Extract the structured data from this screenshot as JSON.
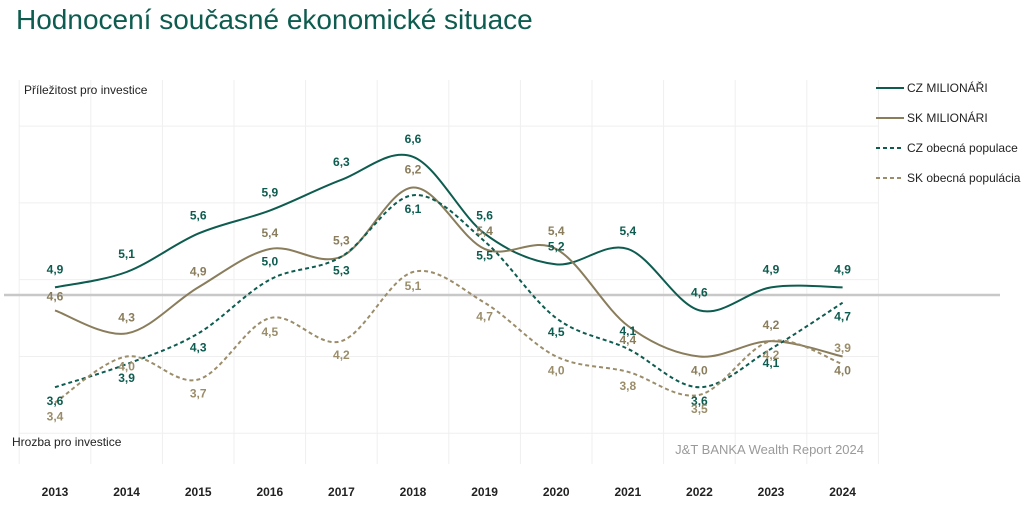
{
  "title": "Hodnocení současné ekonomické situace",
  "top_label": "Příležitost pro investice",
  "bottom_label": "Hrozba pro investice",
  "source": "J&T BANKA Wealth Report 2024",
  "chart_data": {
    "type": "line",
    "title": "Hodnocení současné ekonomické situace",
    "x": [
      "2013",
      "2014",
      "2015",
      "2016",
      "2017",
      "2018",
      "2019",
      "2020",
      "2021",
      "2022",
      "2023",
      "2024"
    ],
    "ylim": [
      2.6,
      7.6
    ],
    "reference_line": 4.8,
    "grid": true,
    "legend_position": "top-right",
    "series": [
      {
        "name": "CZ MILIONÁŘI",
        "color": "#0d5c4f",
        "style": "solid",
        "values": [
          4.9,
          5.1,
          5.6,
          5.9,
          6.3,
          6.6,
          5.6,
          5.2,
          5.4,
          4.6,
          4.9,
          4.9
        ],
        "labels": [
          "4,9",
          "5,1",
          "5,6",
          "5,9",
          "6,3",
          "6,6",
          "5,6",
          "5,2",
          "5,4",
          "4,6",
          "4,9",
          "4,9"
        ]
      },
      {
        "name": "SK MILIONÁRI",
        "color": "#8a7d5c",
        "style": "solid",
        "values": [
          4.6,
          4.3,
          4.9,
          5.4,
          5.3,
          6.2,
          5.4,
          5.4,
          4.4,
          4.0,
          4.2,
          4.0
        ],
        "labels": [
          "4,6",
          "4,3",
          "4,9",
          "5,4",
          "5,3",
          "6,2",
          "5,4",
          "5,4",
          "4,4",
          "4,0",
          "4,2",
          "4,0"
        ]
      },
      {
        "name": "CZ obecná populace",
        "color": "#0d5c4f",
        "style": "dashed",
        "values": [
          3.6,
          3.9,
          4.3,
          5.0,
          5.3,
          6.1,
          5.5,
          4.5,
          4.1,
          3.6,
          4.1,
          4.7
        ],
        "labels": [
          "3,6",
          "3,9",
          "4,3",
          "5,0",
          "5,3",
          "6,1",
          "5,5",
          "4,5",
          "4,1",
          "3,6",
          "4,1",
          "4,7"
        ]
      },
      {
        "name": "SK obecná populácia",
        "color": "#9b8d6a",
        "style": "dashed",
        "values": [
          3.4,
          4.0,
          3.7,
          4.5,
          4.2,
          5.1,
          4.7,
          4.0,
          3.8,
          3.5,
          4.2,
          3.9
        ],
        "labels": [
          "3,4",
          "4,0",
          "3,7",
          "4,5",
          "4,2",
          "5,1",
          "4,7",
          "4,0",
          "3,8",
          "3,5",
          "4,2",
          "3,9"
        ]
      }
    ]
  }
}
